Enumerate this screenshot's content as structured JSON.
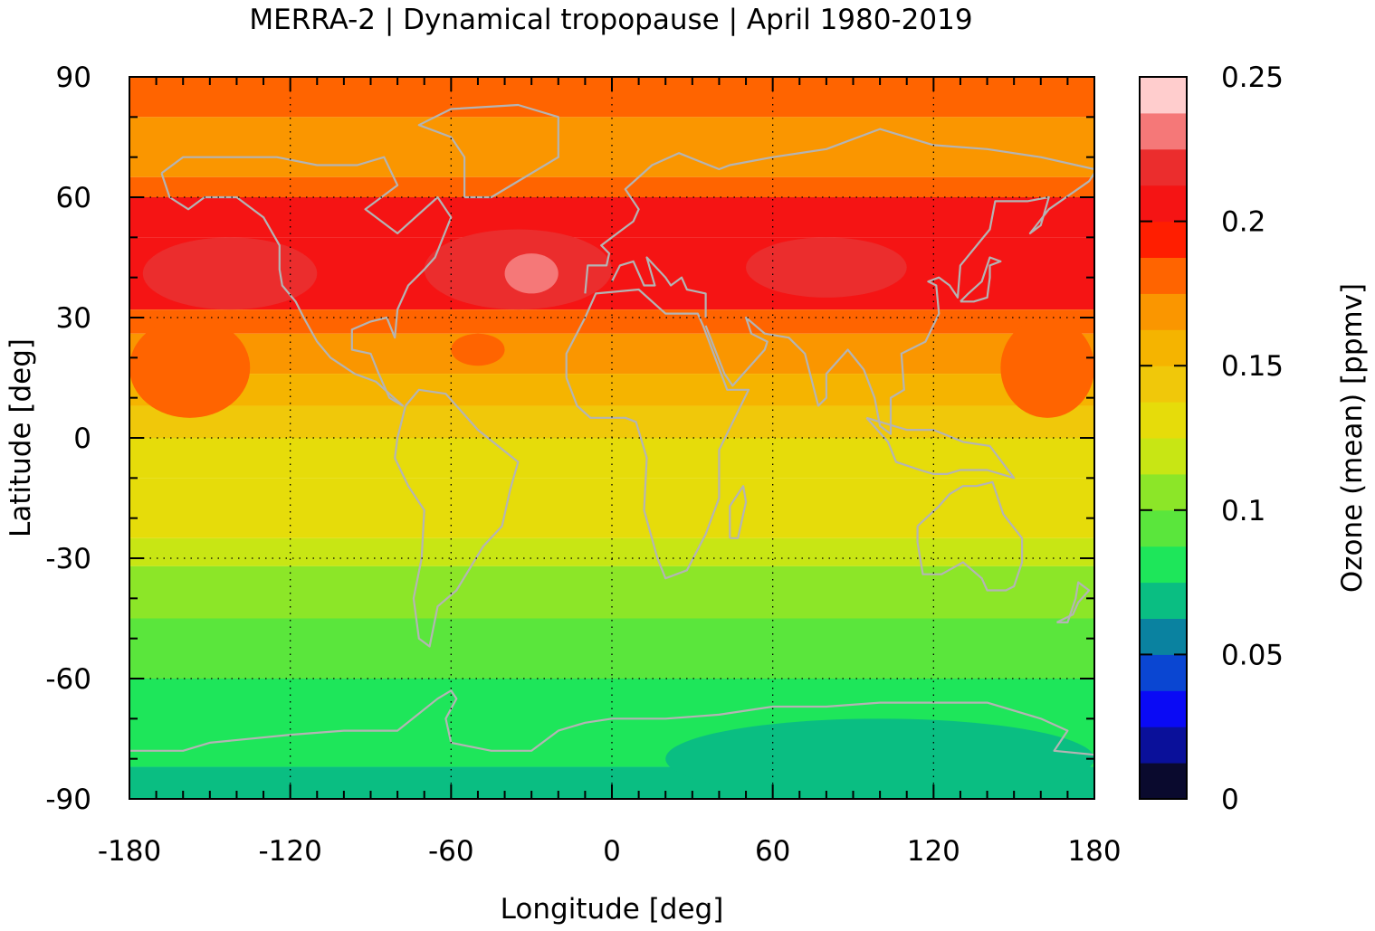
{
  "chart_data": {
    "type": "heatmap",
    "title": "MERRA-2 | Dynamical tropopause | April 1980-2019",
    "xlabel": "Longitude [deg]",
    "ylabel": "Latitude [deg]",
    "colorbar_label": "Ozone (mean) [ppmv]",
    "xlim": [
      -180,
      180
    ],
    "ylim": [
      -90,
      90
    ],
    "xticks": [
      "-180",
      "-120",
      "-60",
      "0",
      "60",
      "120",
      "180"
    ],
    "yticks": [
      "90",
      "60",
      "30",
      "0",
      "-30",
      "-60",
      "-90"
    ],
    "colorbar_ticks": [
      "0.25",
      "0.2",
      "0.15",
      "0.1",
      "0.05",
      "0"
    ],
    "colorbar_range": [
      0,
      0.25
    ],
    "grid": true,
    "coastlines": true,
    "color_levels": [
      {
        "from": 0.0,
        "to": 0.0125,
        "color": "#0a0a2e"
      },
      {
        "from": 0.0125,
        "to": 0.025,
        "color": "#0a109a"
      },
      {
        "from": 0.025,
        "to": 0.0375,
        "color": "#0a0af5"
      },
      {
        "from": 0.0375,
        "to": 0.05,
        "color": "#0a46d2"
      },
      {
        "from": 0.05,
        "to": 0.0625,
        "color": "#0a82a0"
      },
      {
        "from": 0.0625,
        "to": 0.075,
        "color": "#0abe82"
      },
      {
        "from": 0.075,
        "to": 0.0875,
        "color": "#1ee65a"
      },
      {
        "from": 0.0875,
        "to": 0.1,
        "color": "#5ae63c"
      },
      {
        "from": 0.1,
        "to": 0.1125,
        "color": "#8ce628"
      },
      {
        "from": 0.1125,
        "to": 0.125,
        "color": "#c8e614"
      },
      {
        "from": 0.125,
        "to": 0.1375,
        "color": "#e6dc0a"
      },
      {
        "from": 0.1375,
        "to": 0.15,
        "color": "#f0c80a"
      },
      {
        "from": 0.15,
        "to": 0.1625,
        "color": "#f5b400"
      },
      {
        "from": 0.1625,
        "to": 0.175,
        "color": "#fa9600"
      },
      {
        "from": 0.175,
        "to": 0.1875,
        "color": "#ff6400"
      },
      {
        "from": 0.1875,
        "to": 0.2,
        "color": "#ff1e00"
      },
      {
        "from": 0.2,
        "to": 0.2125,
        "color": "#f51414"
      },
      {
        "from": 0.2125,
        "to": 0.225,
        "color": "#eb2d2d"
      },
      {
        "from": 0.225,
        "to": 0.2375,
        "color": "#f57878"
      },
      {
        "from": 0.2375,
        "to": 0.25,
        "color": "#ffcdcd"
      }
    ],
    "zonal_bands": [
      {
        "lat_from": 80,
        "lat_to": 90,
        "value": 0.18
      },
      {
        "lat_from": 65,
        "lat_to": 80,
        "value": 0.17
      },
      {
        "lat_from": 60,
        "lat_to": 65,
        "value": 0.18
      },
      {
        "lat_from": 50,
        "lat_to": 60,
        "value": 0.2
      },
      {
        "lat_from": 32,
        "lat_to": 50,
        "value": 0.21
      },
      {
        "lat_from": 26,
        "lat_to": 32,
        "value": 0.18
      },
      {
        "lat_from": 16,
        "lat_to": 26,
        "value": 0.17
      },
      {
        "lat_from": 8,
        "lat_to": 16,
        "value": 0.16
      },
      {
        "lat_from": 0,
        "lat_to": 8,
        "value": 0.14
      },
      {
        "lat_from": -10,
        "lat_to": 0,
        "value": 0.13
      },
      {
        "lat_from": -25,
        "lat_to": -10,
        "value": 0.13
      },
      {
        "lat_from": -32,
        "lat_to": -25,
        "value": 0.12
      },
      {
        "lat_from": -45,
        "lat_to": -32,
        "value": 0.11
      },
      {
        "lat_from": -60,
        "lat_to": -45,
        "value": 0.095
      },
      {
        "lat_from": -82,
        "lat_to": -60,
        "value": 0.08
      },
      {
        "lat_from": -90,
        "lat_to": -82,
        "value": 0.07
      }
    ],
    "regional_anomalies": [
      {
        "lon_from": -180,
        "lon_to": -135,
        "lat_from": 5,
        "lat_to": 30,
        "value": 0.18
      },
      {
        "lon_from": 145,
        "lon_to": 180,
        "lat_from": 5,
        "lat_to": 30,
        "value": 0.18
      },
      {
        "lon_from": -175,
        "lon_to": -110,
        "lat_from": 32,
        "lat_to": 50,
        "value": 0.215
      },
      {
        "lon_from": 50,
        "lon_to": 110,
        "lat_from": 35,
        "lat_to": 50,
        "value": 0.215
      },
      {
        "lon_from": -70,
        "lon_to": 0,
        "lat_from": 32,
        "lat_to": 52,
        "value": 0.215
      },
      {
        "lon_from": -40,
        "lon_to": -20,
        "lat_from": 36,
        "lat_to": 46,
        "value": 0.23
      },
      {
        "lon_from": -60,
        "lon_to": -40,
        "lat_from": 18,
        "lat_to": 26,
        "value": 0.18
      },
      {
        "lon_from": 20,
        "lon_to": 180,
        "lat_from": -90,
        "lat_to": -70,
        "value": 0.07
      }
    ]
  }
}
